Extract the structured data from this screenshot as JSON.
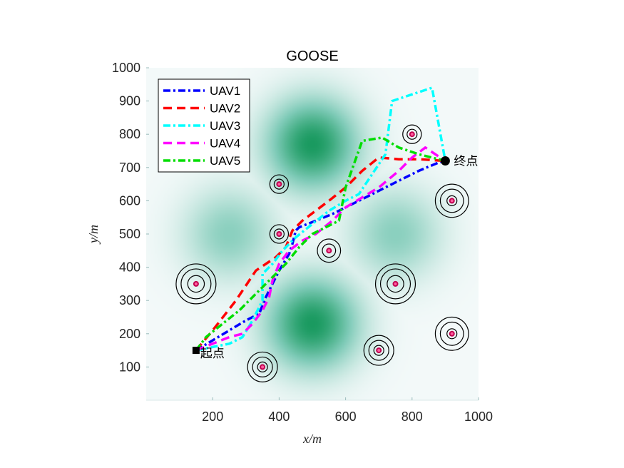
{
  "chart_data": {
    "type": "line",
    "title": "GOOSE",
    "xlabel": "x/m",
    "ylabel": "y/m",
    "xlim": [
      0,
      1000
    ],
    "ylim": [
      0,
      1000
    ],
    "xticks": [
      200,
      400,
      600,
      800,
      1000
    ],
    "yticks": [
      100,
      200,
      300,
      400,
      500,
      600,
      700,
      800,
      900,
      1000
    ],
    "grid": false,
    "legend_position": "top-left",
    "terrain": {
      "colormap": [
        "#f3f9f9",
        "#7fcbb8",
        "#1a9a60"
      ],
      "peaks": [
        {
          "x": 500,
          "y": 770,
          "strength": 1.0
        },
        {
          "x": 500,
          "y": 230,
          "strength": 1.0
        },
        {
          "x": 250,
          "y": 500,
          "strength": 0.45
        },
        {
          "x": 750,
          "y": 500,
          "strength": 0.45
        }
      ]
    },
    "start": {
      "x": 150,
      "y": 150,
      "label": "起点"
    },
    "end": {
      "x": 900,
      "y": 720,
      "label": "终点"
    },
    "obstacles": [
      {
        "x": 150,
        "y": 350,
        "radii": [
          60,
          45,
          25
        ]
      },
      {
        "x": 750,
        "y": 350,
        "radii": [
          60,
          45,
          25
        ]
      },
      {
        "x": 920,
        "y": 600,
        "radii": [
          50,
          35,
          15
        ]
      },
      {
        "x": 920,
        "y": 200,
        "radii": [
          50,
          35,
          15
        ]
      },
      {
        "x": 700,
        "y": 150,
        "radii": [
          45,
          30,
          15
        ]
      },
      {
        "x": 350,
        "y": 100,
        "radii": [
          45,
          30,
          15
        ]
      },
      {
        "x": 550,
        "y": 450,
        "radii": [
          35,
          20
        ]
      },
      {
        "x": 400,
        "y": 650,
        "radii": [
          28,
          15
        ]
      },
      {
        "x": 400,
        "y": 500,
        "radii": [
          28,
          15
        ]
      },
      {
        "x": 800,
        "y": 800,
        "radii": [
          28,
          15
        ]
      }
    ],
    "series": [
      {
        "name": "UAV1",
        "color": "#0000ff",
        "dash": "dashdot",
        "points": [
          [
            150,
            150
          ],
          [
            200,
            180
          ],
          [
            250,
            210
          ],
          [
            300,
            240
          ],
          [
            340,
            260
          ],
          [
            360,
            310
          ],
          [
            400,
            390
          ],
          [
            430,
            440
          ],
          [
            440,
            470
          ],
          [
            450,
            510
          ],
          [
            460,
            520
          ],
          [
            510,
            540
          ],
          [
            560,
            560
          ],
          [
            620,
            590
          ],
          [
            700,
            630
          ],
          [
            760,
            660
          ],
          [
            820,
            690
          ],
          [
            880,
            715
          ],
          [
            900,
            720
          ]
        ]
      },
      {
        "name": "UAV2",
        "color": "#ff0000",
        "dash": "dashed",
        "points": [
          [
            150,
            150
          ],
          [
            200,
            210
          ],
          [
            270,
            300
          ],
          [
            330,
            390
          ],
          [
            390,
            430
          ],
          [
            420,
            460
          ],
          [
            440,
            510
          ],
          [
            470,
            540
          ],
          [
            510,
            570
          ],
          [
            550,
            600
          ],
          [
            600,
            640
          ],
          [
            650,
            690
          ],
          [
            700,
            730
          ],
          [
            760,
            725
          ],
          [
            820,
            725
          ],
          [
            900,
            720
          ]
        ]
      },
      {
        "name": "UAV3",
        "color": "#00ffff",
        "dash": "dashdot",
        "points": [
          [
            150,
            150
          ],
          [
            200,
            160
          ],
          [
            250,
            170
          ],
          [
            290,
            190
          ],
          [
            320,
            240
          ],
          [
            350,
            300
          ],
          [
            350,
            380
          ],
          [
            380,
            410
          ],
          [
            410,
            450
          ],
          [
            450,
            490
          ],
          [
            500,
            530
          ],
          [
            550,
            570
          ],
          [
            600,
            600
          ],
          [
            640,
            620
          ],
          [
            680,
            680
          ],
          [
            720,
            740
          ],
          [
            740,
            900
          ],
          [
            800,
            920
          ],
          [
            860,
            940
          ],
          [
            900,
            720
          ]
        ]
      },
      {
        "name": "UAV4",
        "color": "#ff00ff",
        "dash": "dashed",
        "points": [
          [
            150,
            150
          ],
          [
            200,
            170
          ],
          [
            250,
            190
          ],
          [
            290,
            200
          ],
          [
            320,
            230
          ],
          [
            350,
            270
          ],
          [
            370,
            310
          ],
          [
            380,
            360
          ],
          [
            400,
            410
          ],
          [
            430,
            450
          ],
          [
            470,
            480
          ],
          [
            510,
            500
          ],
          [
            560,
            540
          ],
          [
            600,
            580
          ],
          [
            650,
            610
          ],
          [
            700,
            640
          ],
          [
            760,
            690
          ],
          [
            800,
            730
          ],
          [
            840,
            760
          ],
          [
            870,
            740
          ],
          [
            900,
            720
          ]
        ]
      },
      {
        "name": "UAV5",
        "color": "#00dd00",
        "dash": "dashdot",
        "points": [
          [
            150,
            150
          ],
          [
            180,
            190
          ],
          [
            230,
            230
          ],
          [
            280,
            270
          ],
          [
            320,
            310
          ],
          [
            370,
            360
          ],
          [
            420,
            410
          ],
          [
            460,
            460
          ],
          [
            500,
            500
          ],
          [
            540,
            520
          ],
          [
            580,
            540
          ],
          [
            600,
            640
          ],
          [
            650,
            780
          ],
          [
            710,
            790
          ],
          [
            760,
            760
          ],
          [
            820,
            740
          ],
          [
            900,
            720
          ]
        ]
      }
    ]
  }
}
